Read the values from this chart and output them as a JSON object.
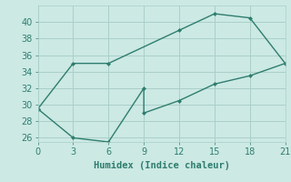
{
  "line1_x": [
    0,
    3,
    6,
    12,
    15,
    18,
    21
  ],
  "line1_y": [
    29.5,
    35.0,
    35.0,
    39.0,
    41.0,
    40.5,
    35.0
  ],
  "line2_x": [
    0,
    3,
    6,
    9,
    9,
    12,
    15,
    18,
    21
  ],
  "line2_y": [
    29.5,
    26.0,
    25.5,
    32.0,
    29.0,
    30.5,
    32.5,
    33.5,
    35.0
  ],
  "line_color": "#2e7d6e",
  "bg_color": "#cce9e4",
  "grid_color": "#aacfc9",
  "xlabel": "Humidex (Indice chaleur)",
  "xlim": [
    0,
    21
  ],
  "ylim": [
    25.5,
    42
  ],
  "xticks": [
    0,
    3,
    6,
    9,
    12,
    15,
    18,
    21
  ],
  "yticks": [
    26,
    28,
    30,
    32,
    34,
    36,
    38,
    40
  ],
  "marker_size": 2.5,
  "line_width": 1.0,
  "tick_font_size": 7,
  "xlabel_font_size": 7.5
}
